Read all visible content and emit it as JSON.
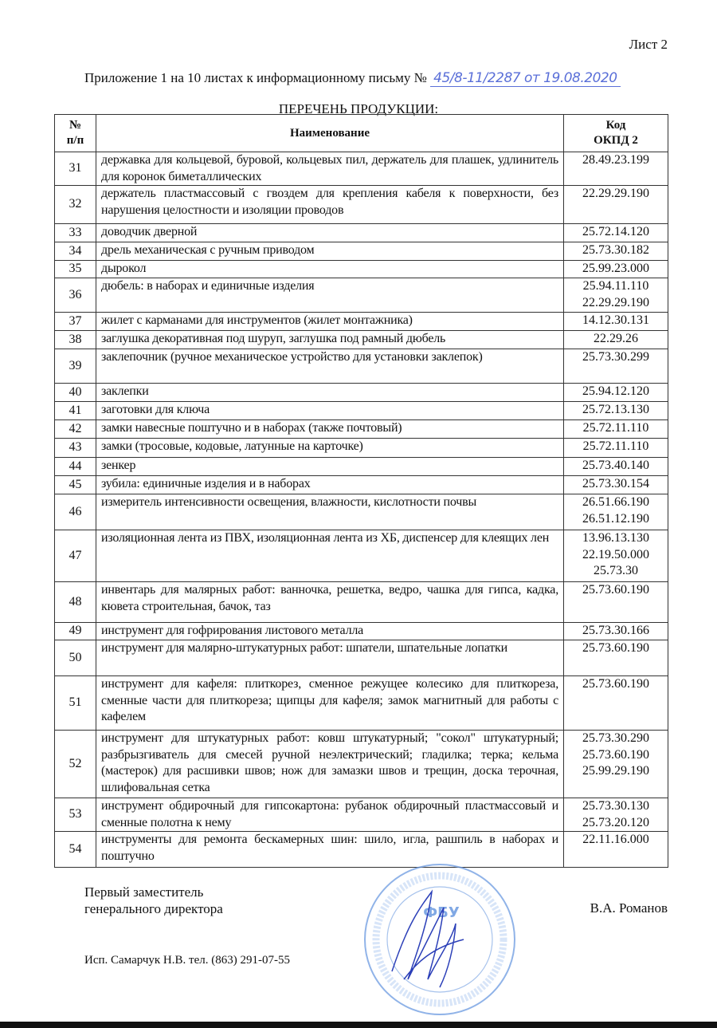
{
  "header": {
    "sheet": "Лист 2",
    "appendix_text": "Приложение 1 на 10 листах к информационному письму №",
    "letter_number_handwritten": "45/8-11/2287 от 19.08.2020",
    "list_title": "ПЕРЕЧЕНЬ ПРОДУКЦИИ:"
  },
  "table": {
    "columns": [
      "№\nп/п",
      "Наименование",
      "Код\nОКПД 2"
    ],
    "rows": [
      {
        "n": "31",
        "name": "державка для кольцевой, буровой, кольцевых пил, держатель для плашек, удлинитель для коронок биметаллических",
        "code": "28.49.23.199"
      },
      {
        "n": "32",
        "name": "держатель пластмассовый с гвоздем для крепления кабеля к поверхности, без нарушения целостности и изоляции проводов",
        "code": "22.29.29.190"
      },
      {
        "n": "33",
        "name": "доводчик дверной",
        "code": "25.72.14.120"
      },
      {
        "n": "34",
        "name": "дрель механическая с ручным приводом",
        "code": "25.73.30.182"
      },
      {
        "n": "35",
        "name": "дырокол",
        "code": "25.99.23.000"
      },
      {
        "n": "36",
        "name": "дюбель: в наборах и единичные изделия",
        "code": "25.94.11.110\n22.29.29.190"
      },
      {
        "n": "37",
        "name": "жилет с карманами для инструментов (жилет монтажника)",
        "code": "14.12.30.131"
      },
      {
        "n": "38",
        "name": "заглушка декоративная под шуруп, заглушка под рамный дюбель",
        "code": "22.29.26"
      },
      {
        "n": "39",
        "name": "заклепочник (ручное механическое устройство для установки заклепок)",
        "code": "25.73.30.299"
      },
      {
        "n": "40",
        "name": "заклепки",
        "code": "25.94.12.120"
      },
      {
        "n": "41",
        "name": "заготовки для ключа",
        "code": "25.72.13.130"
      },
      {
        "n": "42",
        "name": "замки навесные поштучно и в наборах (также почтовый)",
        "code": "25.72.11.110"
      },
      {
        "n": "43",
        "name": "замки (тросовые, кодовые, латунные на карточке)",
        "code": "25.72.11.110"
      },
      {
        "n": "44",
        "name": "зенкер",
        "code": "25.73.40.140"
      },
      {
        "n": "45",
        "name": "зубила: единичные изделия и в наборах",
        "code": "25.73.30.154"
      },
      {
        "n": "46",
        "name": "измеритель интенсивности освещения, влажности, кислотности почвы",
        "code": "26.51.66.190\n26.51.12.190"
      },
      {
        "n": "47",
        "name": "изоляционная лента из ПВХ, изоляционная лента из ХБ, диспенсер для клеящих лен",
        "code": "13.96.13.130\n22.19.50.000\n25.73.30"
      },
      {
        "n": "48",
        "name": "инвентарь для малярных работ: ванночка, решетка, ведро, чашка для гипса, кадка, кювета строительная, бачок, таз",
        "code": "25.73.60.190"
      },
      {
        "n": "49",
        "name": "инструмент для гофрирования листового металла",
        "code": "25.73.30.166"
      },
      {
        "n": "50",
        "name": "инструмент для малярно-штукатурных работ: шпатели, шпательные лопатки",
        "code": "25.73.60.190"
      },
      {
        "n": "51",
        "name": "инструмент для кафеля: плиткорез, сменное режущее колесико для плиткореза, сменные части для плиткореза; щипцы для кафеля; замок магнитный для работы с кафелем",
        "code": "25.73.60.190"
      },
      {
        "n": "52",
        "name": "инструмент для штукатурных работ: ковш штукатурный; \"сокол\" штукатурный; разбрызгиватель для смесей ручной неэлектрический; гладилка; терка; кельма (мастерок) для расшивки швов; нож для замазки швов и трещин, доска терочная, шлифовальная сетка",
        "code": "25.73.30.290\n25.73.60.190\n25.99.29.190"
      },
      {
        "n": "53",
        "name": "инструмент обдирочный для гипсокартона: рубанок обдирочный пластмассовый и сменные полотна к нему",
        "code": "25.73.30.130\n25.73.20.120"
      },
      {
        "n": "54",
        "name": "инструменты для ремонта бескамерных шин: шило, игла, рашпиль в наборах и поштучно",
        "code": "22.11.16.000"
      }
    ]
  },
  "footer": {
    "position_line1": "Первый заместитель",
    "position_line2": "генерального директора",
    "signer": "В.А. Романов",
    "executor": "Исп. Самарчук Н.В. тел. (863) 291-07-55",
    "stamp_text": "ФБУ",
    "stamp_color": "#5b8fd6"
  }
}
